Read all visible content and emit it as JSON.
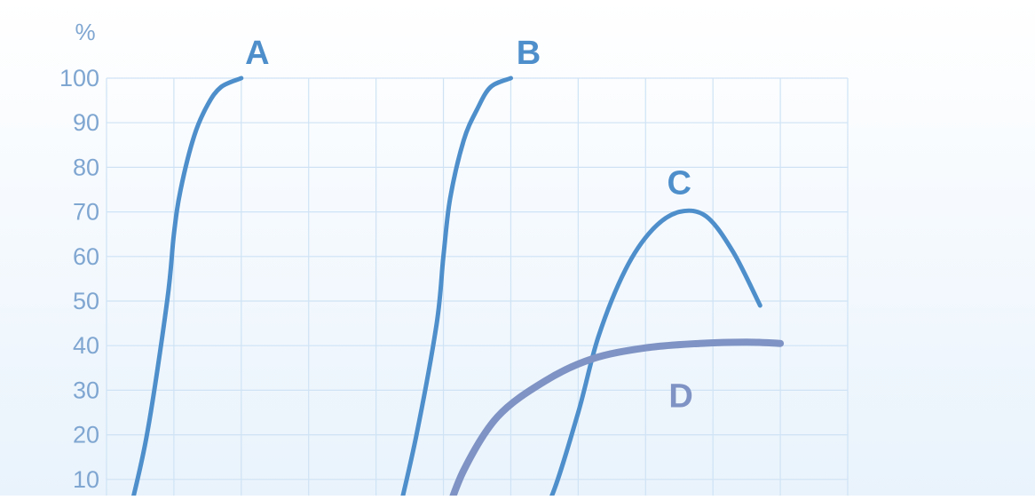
{
  "chart_data": {
    "type": "line",
    "y_unit": "%",
    "ylim": [
      0,
      100
    ],
    "y_ticks": [
      "10",
      "20",
      "30",
      "40",
      "50",
      "60",
      "70",
      "80",
      "90",
      "100"
    ],
    "xlim": [
      0,
      11
    ],
    "grid": true,
    "legend": "none",
    "colors": {
      "axis_text": "#7FA6D1",
      "grid": "#CFE3F5",
      "series_blue": "#4E8FCB",
      "series_gray": "#7F93C4",
      "background_top": "#FFFFFF",
      "background_bottom": "#E9F3FC"
    },
    "series": [
      {
        "name": "A",
        "color": "#4E8FCB",
        "x": [
          0.3,
          0.6,
          0.9,
          1.0,
          1.1,
          1.3,
          1.5,
          1.7,
          2.0
        ],
        "y": [
          0,
          20,
          50,
          65,
          75,
          87,
          94,
          98,
          100
        ]
      },
      {
        "name": "B",
        "color": "#4E8FCB",
        "x": [
          4.3,
          4.6,
          4.9,
          5.0,
          5.1,
          5.3,
          5.5,
          5.7,
          6.0
        ],
        "y": [
          0,
          20,
          45,
          60,
          73,
          86,
          93,
          98,
          100
        ]
      },
      {
        "name": "C",
        "color": "#4E8FCB",
        "x": [
          6.3,
          6.6,
          7.0,
          7.3,
          7.7,
          8.1,
          8.5,
          8.9,
          9.3,
          9.7
        ],
        "y": [
          0,
          6,
          25,
          42,
          57,
          66,
          70,
          69,
          61,
          49
        ]
      },
      {
        "name": "D",
        "color": "#7F93C4",
        "x": [
          5.0,
          5.3,
          5.8,
          6.5,
          7.2,
          8.0,
          8.8,
          9.5,
          10.0
        ],
        "y": [
          0,
          12,
          24,
          32,
          37,
          39.5,
          40.5,
          40.8,
          40.5
        ]
      }
    ]
  }
}
